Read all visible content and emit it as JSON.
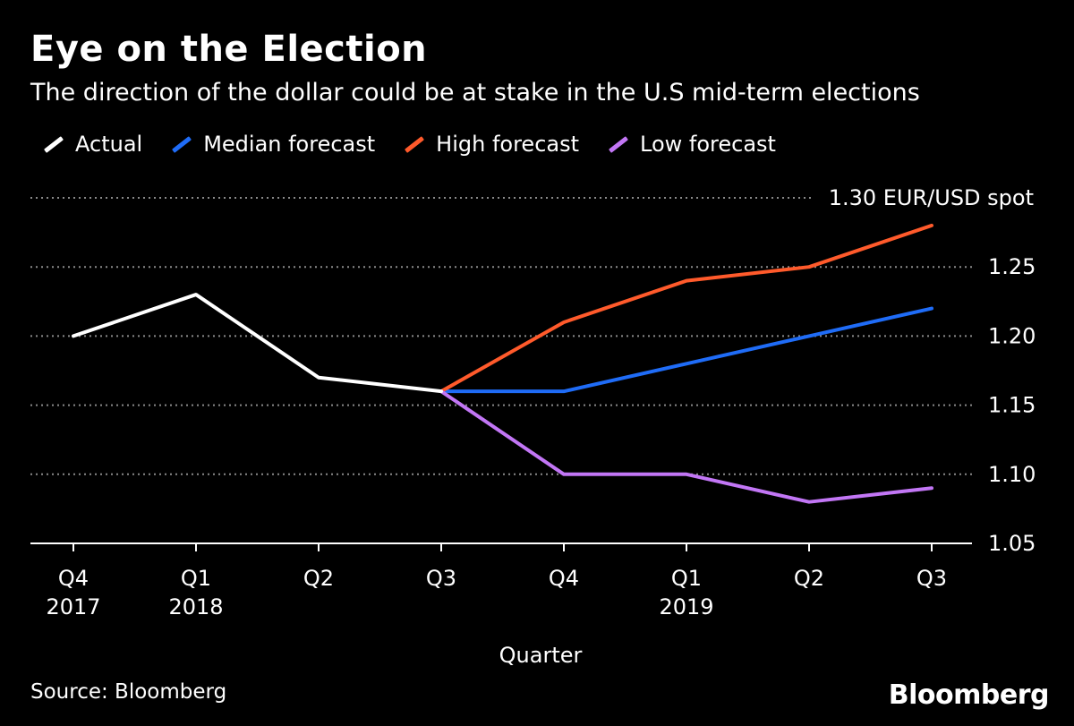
{
  "chart_data": {
    "type": "line",
    "title": "Eye on the Election",
    "subtitle": "The direction of the dollar could be at stake in the U.S mid-term elections",
    "xlabel": "Quarter",
    "ylabel": "EUR/USD spot",
    "top_tick_label": "1.30 EUR/USD spot",
    "yticks": [
      "1.25",
      "1.20",
      "1.15",
      "1.10",
      "1.05"
    ],
    "ytick_values": [
      1.25,
      1.2,
      1.15,
      1.1,
      1.05
    ],
    "ylim": [
      1.05,
      1.3
    ],
    "categories": [
      "Q4 2017",
      "Q1 2018",
      "Q2 2018",
      "Q3 2018",
      "Q4 2018",
      "Q1 2019",
      "Q2 2019",
      "Q3 2019"
    ],
    "x_tick_quarters": [
      "Q4",
      "Q1",
      "Q2",
      "Q3",
      "Q4",
      "Q1",
      "Q2",
      "Q3"
    ],
    "x_tick_years": [
      "2017",
      "2018",
      "",
      "",
      "",
      "2019",
      "",
      ""
    ],
    "series": [
      {
        "name": "Actual",
        "color": "#ffffff",
        "values": [
          1.2,
          1.23,
          1.17,
          1.16,
          null,
          null,
          null,
          null
        ]
      },
      {
        "name": "Median forecast",
        "color": "#1f6cf7",
        "values": [
          null,
          null,
          null,
          1.16,
          1.16,
          1.18,
          1.2,
          1.22
        ]
      },
      {
        "name": "High forecast",
        "color": "#ff5a2b",
        "values": [
          null,
          null,
          null,
          1.16,
          1.21,
          1.24,
          1.25,
          1.28
        ]
      },
      {
        "name": "Low forecast",
        "color": "#c276f5",
        "values": [
          null,
          null,
          null,
          1.16,
          1.1,
          1.1,
          1.08,
          1.09
        ]
      }
    ],
    "legend_position": "top-left",
    "grid": true
  },
  "source": "Source: Bloomberg",
  "brand": "Bloomberg"
}
